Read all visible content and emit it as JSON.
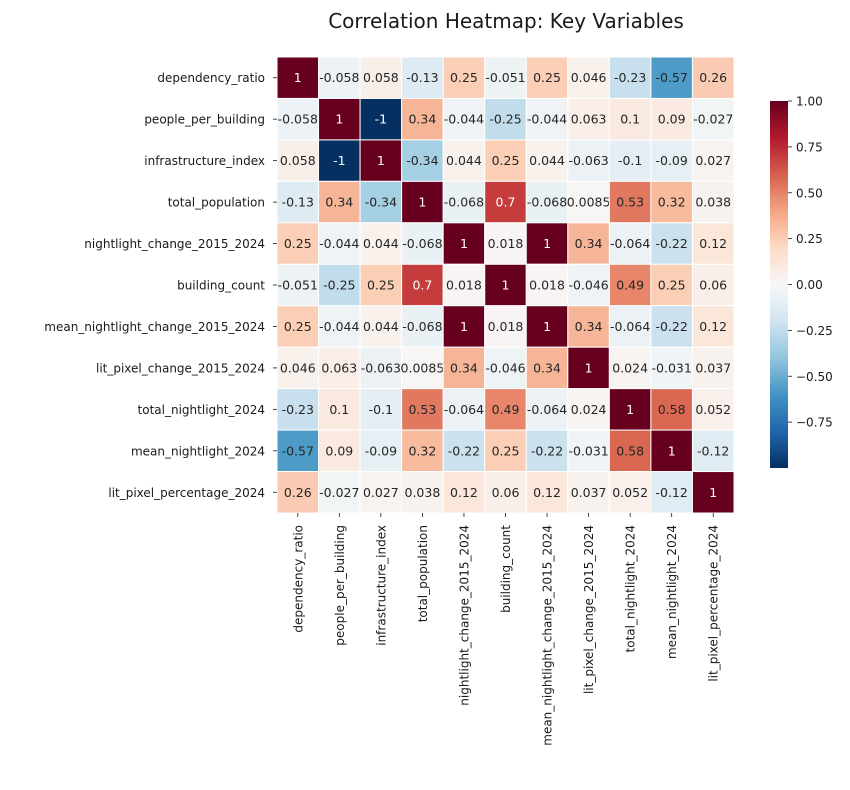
{
  "chart_data": {
    "type": "heatmap",
    "title": "Correlation Heatmap: Key Variables",
    "xlabel": "",
    "ylabel": "",
    "colormap": "RdBu_r",
    "vmin": -1,
    "vmax": 1,
    "annotated": true,
    "labels": [
      "dependency_ratio",
      "people_per_building",
      "infrastructure_index",
      "total_population",
      "nightlight_change_2015_2024",
      "building_count",
      "mean_nightlight_change_2015_2024",
      "lit_pixel_change_2015_2024",
      "total_nightlight_2024",
      "mean_nightlight_2024",
      "lit_pixel_percentage_2024"
    ],
    "matrix": [
      [
        1,
        -0.058,
        0.058,
        -0.13,
        0.25,
        -0.051,
        0.25,
        0.046,
        -0.23,
        -0.57,
        0.26
      ],
      [
        -0.058,
        1,
        -1,
        0.34,
        -0.044,
        -0.25,
        -0.044,
        0.063,
        0.1,
        0.09,
        -0.027
      ],
      [
        0.058,
        -1,
        1,
        -0.34,
        0.044,
        0.25,
        0.044,
        -0.063,
        -0.1,
        -0.09,
        0.027
      ],
      [
        -0.13,
        0.34,
        -0.34,
        1,
        -0.068,
        0.7,
        -0.068,
        0.0085,
        0.53,
        0.32,
        0.038
      ],
      [
        0.25,
        -0.044,
        0.044,
        -0.068,
        1,
        0.018,
        1,
        0.34,
        -0.064,
        -0.22,
        0.12
      ],
      [
        -0.051,
        -0.25,
        0.25,
        0.7,
        0.018,
        1,
        0.018,
        -0.046,
        0.49,
        0.25,
        0.06
      ],
      [
        0.25,
        -0.044,
        0.044,
        -0.068,
        1,
        0.018,
        1,
        0.34,
        -0.064,
        -0.22,
        0.12
      ],
      [
        0.046,
        0.063,
        -0.063,
        0.0085,
        0.34,
        -0.046,
        0.34,
        1,
        0.024,
        -0.031,
        0.037
      ],
      [
        -0.23,
        0.1,
        -0.1,
        0.53,
        -0.064,
        0.49,
        -0.064,
        0.024,
        1,
        0.58,
        0.052
      ],
      [
        -0.57,
        0.09,
        -0.09,
        0.32,
        -0.22,
        0.25,
        -0.22,
        -0.031,
        0.58,
        1,
        -0.12
      ],
      [
        0.26,
        -0.027,
        0.027,
        0.038,
        0.12,
        0.06,
        0.12,
        0.037,
        0.052,
        -0.12,
        1
      ]
    ],
    "colorbar": {
      "ticks": [
        1.0,
        0.75,
        0.5,
        0.25,
        0.0,
        -0.25,
        -0.5,
        -0.75
      ],
      "tick_labels": [
        "1.00",
        "0.75",
        "0.50",
        "0.25",
        "0.00",
        "−0.25",
        "−0.50",
        "−0.75"
      ],
      "range": [
        -1,
        1
      ],
      "placement": "right"
    },
    "grid": false
  }
}
